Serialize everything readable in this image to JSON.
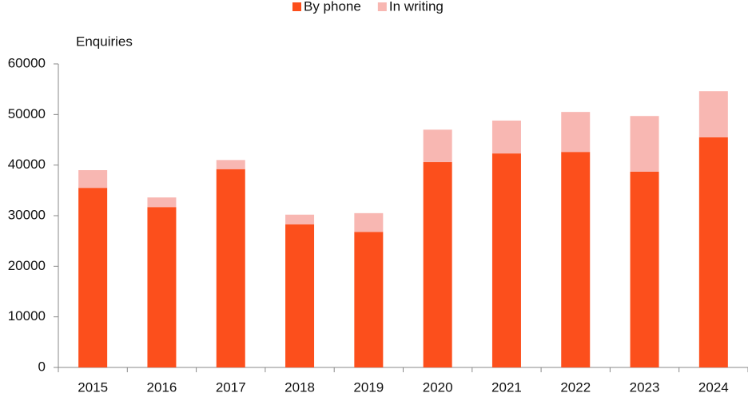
{
  "chart_data": {
    "type": "bar",
    "stacked": true,
    "y_label": "Enquiries",
    "categories": [
      "2015",
      "2016",
      "2017",
      "2018",
      "2019",
      "2020",
      "2021",
      "2022",
      "2023",
      "2024"
    ],
    "series": [
      {
        "name": "By phone",
        "color": "#fc4f1c",
        "values": [
          35500,
          31700,
          39200,
          28300,
          26800,
          40600,
          42300,
          42600,
          38700,
          45500
        ]
      },
      {
        "name": "In writing",
        "color": "#f8b7b2",
        "values": [
          3500,
          1900,
          1800,
          1900,
          3700,
          6400,
          6500,
          7900,
          11000,
          9100
        ]
      }
    ],
    "ylim": [
      0,
      60000
    ],
    "yticks": [
      0,
      10000,
      20000,
      30000,
      40000,
      50000,
      60000
    ],
    "grid": false
  }
}
